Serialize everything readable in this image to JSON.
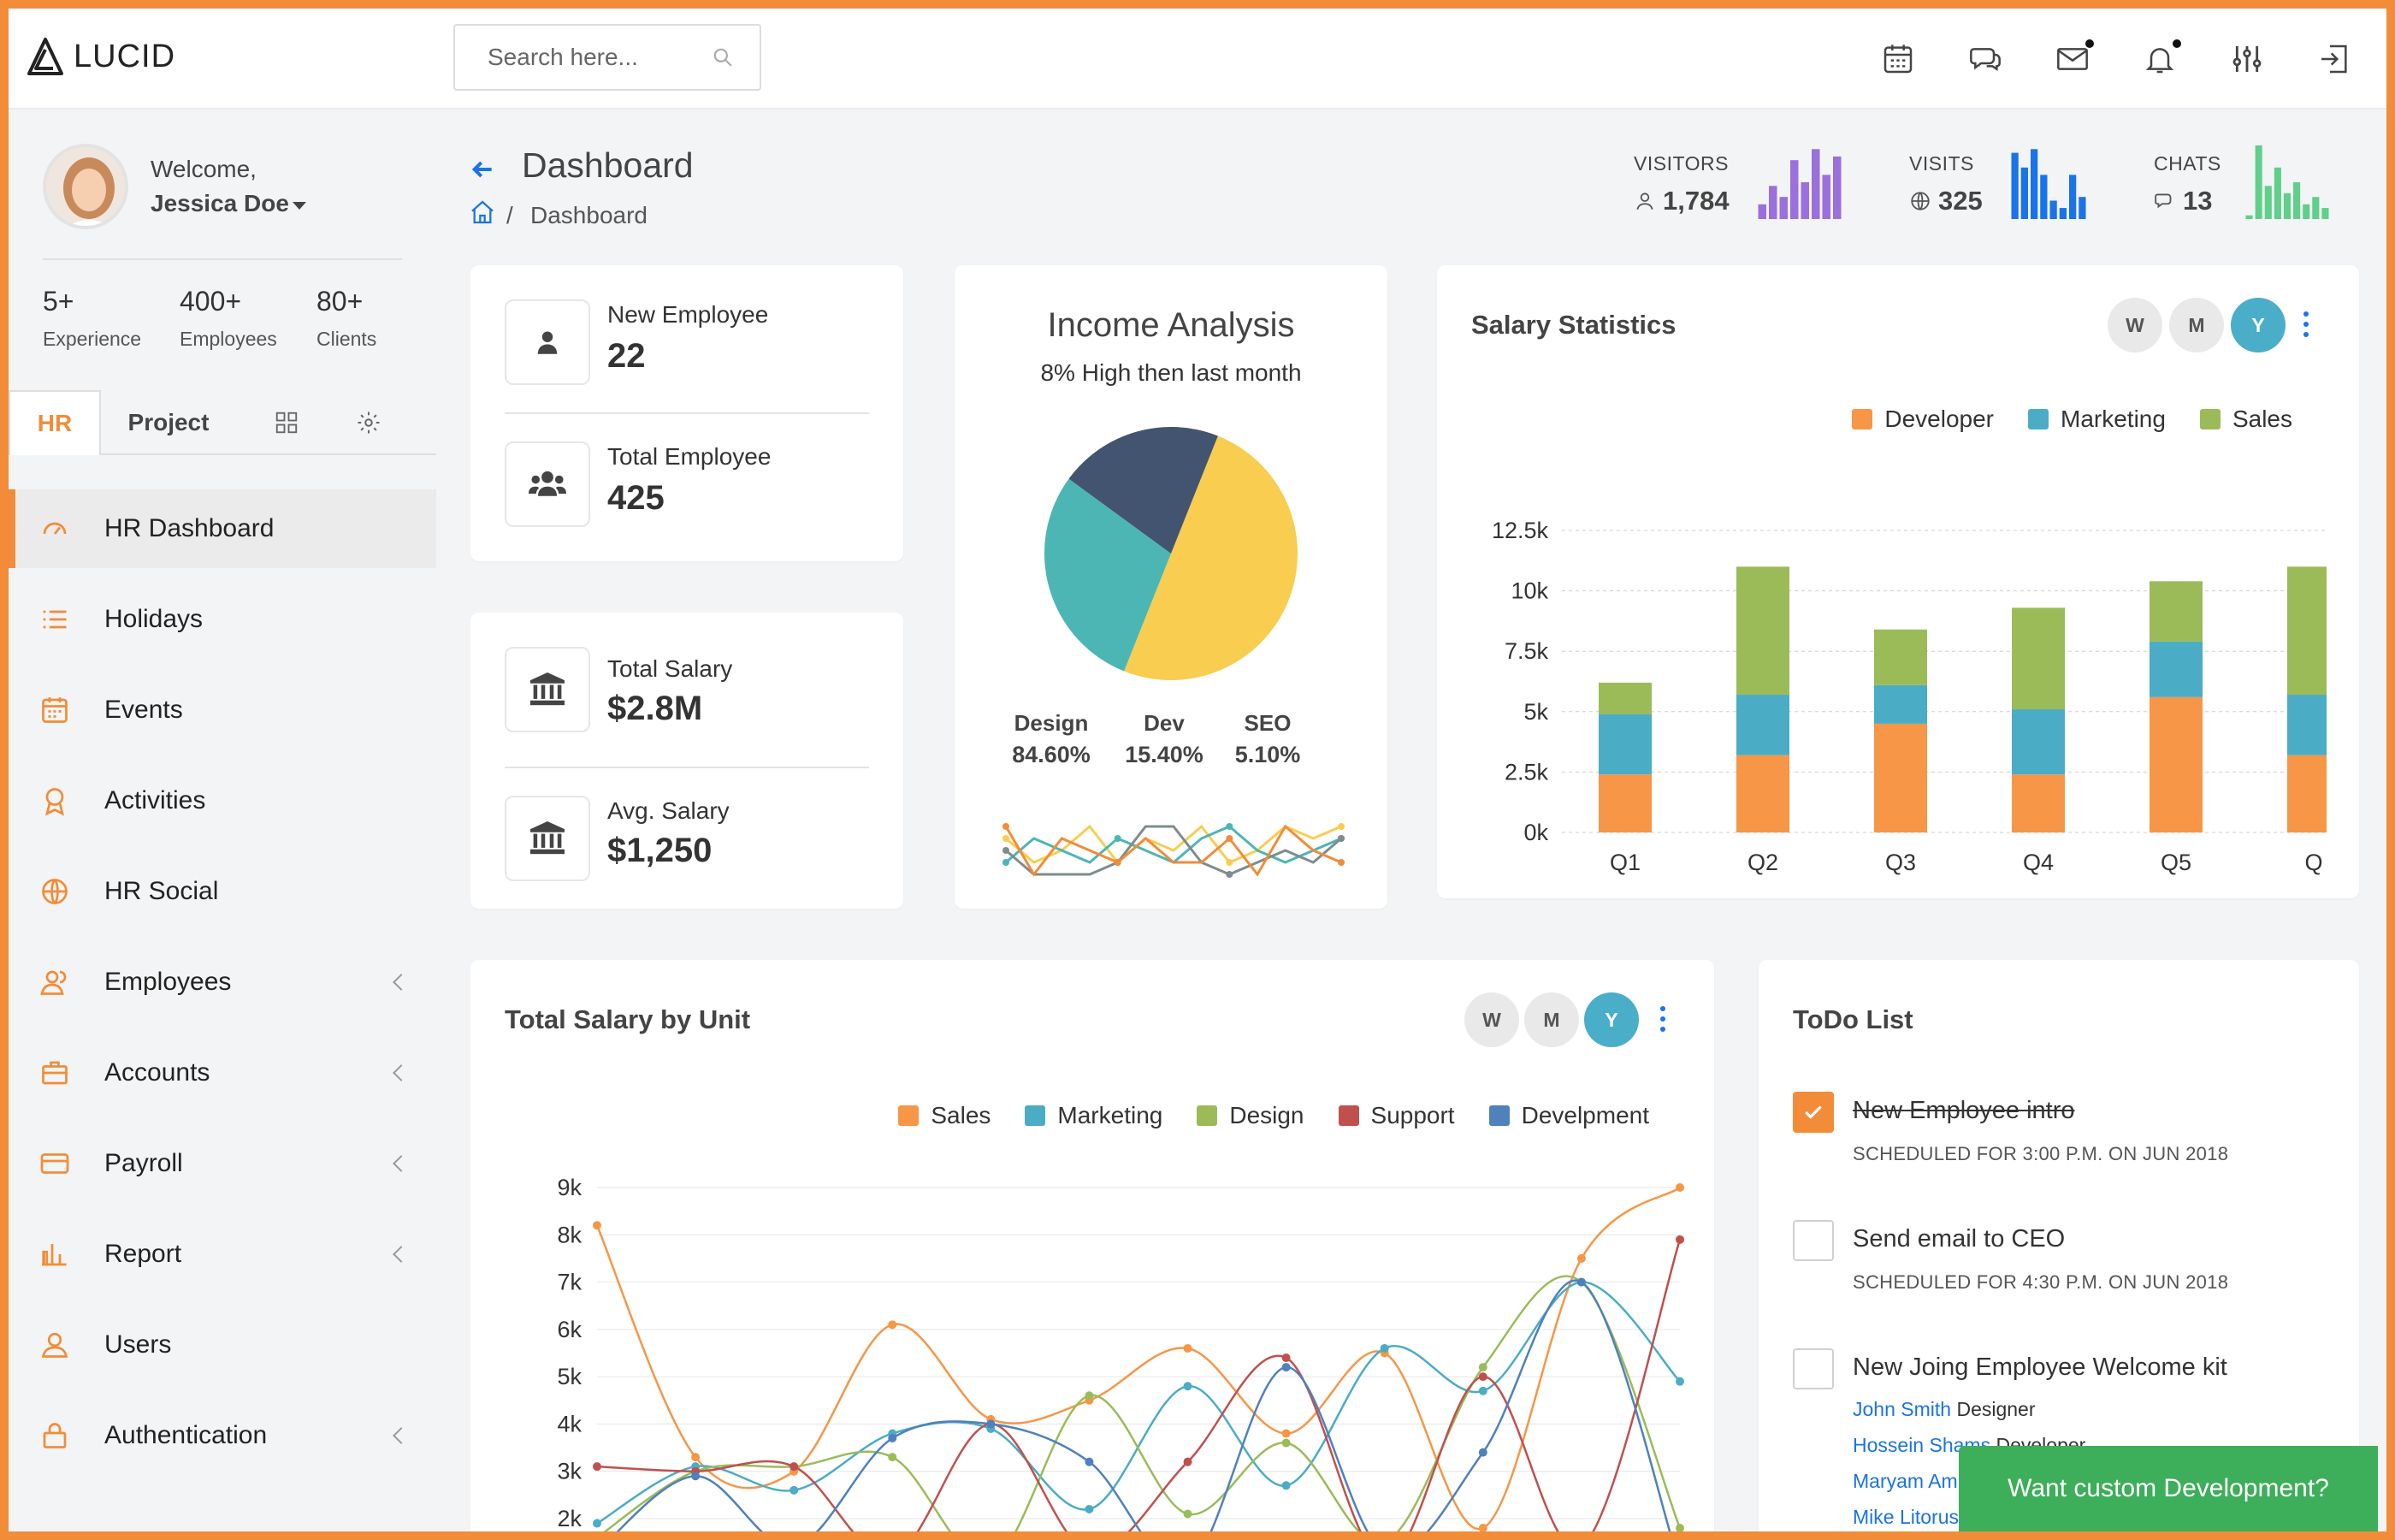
{
  "brand": {
    "name": "LUCID"
  },
  "search": {
    "placeholder": "Search here..."
  },
  "topbar": {
    "icons": [
      "calendar-icon",
      "chat-icon",
      "mail-icon",
      "bell-icon",
      "sliders-icon",
      "logout-icon"
    ]
  },
  "user": {
    "welcome": "Welcome,",
    "name": "Jessica Doe"
  },
  "stats": [
    {
      "value": "5+",
      "label": "Experience"
    },
    {
      "value": "400+",
      "label": "Employees"
    },
    {
      "value": "80+",
      "label": "Clients"
    }
  ],
  "sidebar_tabs": {
    "hr": "HR",
    "project": "Project"
  },
  "nav": [
    {
      "label": "HR Dashboard",
      "icon": "speedometer-icon",
      "active": true,
      "submenu": false
    },
    {
      "label": "Holidays",
      "icon": "list-icon",
      "submenu": false
    },
    {
      "label": "Events",
      "icon": "calendar-icon",
      "submenu": false
    },
    {
      "label": "Activities",
      "icon": "award-icon",
      "submenu": false
    },
    {
      "label": "HR Social",
      "icon": "globe-icon",
      "submenu": false
    },
    {
      "label": "Employees",
      "icon": "users-icon",
      "submenu": true
    },
    {
      "label": "Accounts",
      "icon": "briefcase-icon",
      "submenu": true
    },
    {
      "label": "Payroll",
      "icon": "credit-card-icon",
      "submenu": true
    },
    {
      "label": "Report",
      "icon": "bar-chart-icon",
      "submenu": true
    },
    {
      "label": "Users",
      "icon": "user-icon",
      "submenu": false
    },
    {
      "label": "Authentication",
      "icon": "lock-icon",
      "submenu": true
    }
  ],
  "header": {
    "title": "Dashboard",
    "breadcrumb": "Dashboard",
    "breadcrumb_sep": "/"
  },
  "kpis": [
    {
      "label": "VISITORS",
      "value": "1,784",
      "icon": "user-icon",
      "color": "#9b6fdc",
      "bars": [
        0.2,
        0.45,
        0.3,
        0.8,
        0.5,
        0.95,
        0.6,
        0.85
      ]
    },
    {
      "label": "VISITS",
      "value": "325",
      "icon": "globe-icon",
      "color": "#1a73e8",
      "bars": [
        0.9,
        0.7,
        0.95,
        0.6,
        0.25,
        0.15,
        0.6,
        0.3
      ]
    },
    {
      "label": "CHATS",
      "value": "13",
      "icon": "chat-icon",
      "color": "#5fcf8a",
      "bars": [
        0.05,
        1.0,
        0.45,
        0.7,
        0.35,
        0.5,
        0.2,
        0.3,
        0.15
      ]
    }
  ],
  "metrics": [
    {
      "label": "New Employee",
      "value": "22",
      "icon": "user-icon"
    },
    {
      "label": "Total Employee",
      "value": "425",
      "icon": "users-icon"
    },
    {
      "label": "Total Salary",
      "value": "$2.8M",
      "icon": "bank-icon"
    },
    {
      "label": "Avg. Salary",
      "value": "$1,250",
      "icon": "bank-icon"
    }
  ],
  "income": {
    "title": "Income Analysis",
    "subtitle": "8% High then last month",
    "breakdown": [
      {
        "label": "Design",
        "value": "84.60%"
      },
      {
        "label": "Dev",
        "value": "15.40%"
      },
      {
        "label": "SEO",
        "value": "5.10%"
      }
    ]
  },
  "salary_stats": {
    "title": "Salary Statistics"
  },
  "salary_unit": {
    "title": "Total Salary by Unit"
  },
  "period_pills": [
    "W",
    "M",
    "Y"
  ],
  "chart_data": [
    {
      "type": "pie",
      "slices": [
        {
          "value": 50,
          "color": "#f8cd50"
        },
        {
          "value": 29,
          "color": "#4cb6b4"
        },
        {
          "value": 21,
          "color": "#42546f"
        }
      ]
    },
    {
      "type": "line",
      "series": [
        {
          "color": "#f8cd50",
          "values": [
            4,
            2,
            3,
            5,
            2,
            4,
            3,
            5,
            2,
            3,
            5,
            4,
            5
          ]
        },
        {
          "color": "#4cb6b4",
          "values": [
            2,
            4,
            3,
            2,
            4,
            3,
            2,
            4,
            5,
            3,
            2,
            3,
            4
          ]
        },
        {
          "color": "#7f8c8d",
          "values": [
            3,
            1,
            1,
            1,
            2,
            5,
            5,
            2,
            1,
            2,
            3,
            2,
            4
          ]
        },
        {
          "color": "#f28c38",
          "values": [
            5,
            1,
            4,
            3,
            2,
            4,
            2,
            2,
            4,
            1,
            5,
            3,
            2
          ]
        }
      ]
    },
    {
      "type": "bar",
      "stacked": true,
      "categories": [
        "Q1",
        "Q2",
        "Q3",
        "Q4",
        "Q5",
        "Q"
      ],
      "series": [
        {
          "name": "Developer",
          "color": "#f79646",
          "values": [
            2400,
            3200,
            4500,
            2400,
            5600,
            3200
          ]
        },
        {
          "name": "Marketing",
          "color": "#4bacc6",
          "values": [
            2500,
            2500,
            1600,
            2700,
            2300,
            2500
          ]
        },
        {
          "name": "Sales",
          "color": "#9bbb59",
          "values": [
            1300,
            5300,
            2300,
            4200,
            2500,
            5300
          ]
        }
      ],
      "y_ticks": [
        "12.5k",
        "10k",
        "7.5k",
        "5k",
        "2.5k",
        "0k"
      ],
      "ylim": [
        0,
        12500
      ]
    },
    {
      "type": "line",
      "series": [
        {
          "name": "Sales",
          "color": "#f79646",
          "values": [
            8.2,
            3.3,
            3.0,
            6.1,
            4.1,
            4.5,
            5.6,
            3.8,
            5.5,
            1.8,
            7.5,
            9.0
          ]
        },
        {
          "name": "Marketing",
          "color": "#4bacc6",
          "values": [
            1.9,
            3.1,
            2.6,
            3.8,
            3.9,
            2.2,
            4.8,
            2.7,
            5.6,
            4.7,
            7.0,
            4.9
          ]
        },
        {
          "name": "Design",
          "color": "#9bbb59",
          "values": [
            1.6,
            3.0,
            3.1,
            3.3,
            1.1,
            4.6,
            2.1,
            3.6,
            1.5,
            5.2,
            7.0,
            1.8
          ]
        },
        {
          "name": "Support",
          "color": "#c0504d",
          "values": [
            3.1,
            3.0,
            3.1,
            1.2,
            4.0,
            1.3,
            3.2,
            5.4,
            1.1,
            5.0,
            1.4,
            7.9
          ]
        },
        {
          "name": "Develpment",
          "color": "#4f81bd",
          "values": [
            1.3,
            2.9,
            1.4,
            3.7,
            4.0,
            3.2,
            1.0,
            5.2,
            1.3,
            3.4,
            7.0,
            1.0
          ]
        }
      ],
      "y_ticks": [
        "9k",
        "8k",
        "7k",
        "6k",
        "5k",
        "4k",
        "3k",
        "2k"
      ],
      "ylim": [
        1,
        9
      ]
    }
  ],
  "todo": {
    "title": "ToDo List",
    "items": [
      {
        "title": "New Employee intro",
        "schedule": "SCHEDULED FOR 3:00 P.M. ON JUN 2018",
        "done": true
      },
      {
        "title": "Send email to CEO",
        "schedule": "SCHEDULED FOR 4:30 P.M. ON JUN 2018",
        "done": false
      },
      {
        "title": "New Joing Employee Welcome kit",
        "done": false
      }
    ],
    "assignees": [
      {
        "name": "John Smith",
        "role": "Designer"
      },
      {
        "name": "Hossein Shams",
        "role": "Developer"
      },
      {
        "name": "Maryam Amir",
        "role": ""
      },
      {
        "name": "Mike Litorus",
        "role": ""
      }
    ]
  },
  "cta": {
    "label": "Want custom Development?"
  }
}
